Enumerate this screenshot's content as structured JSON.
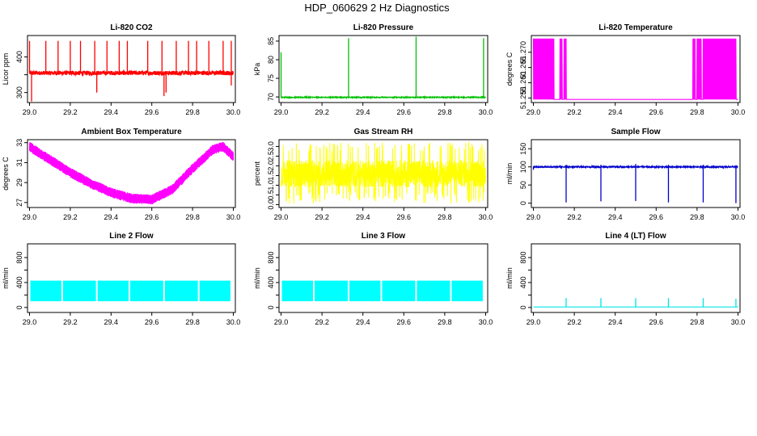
{
  "figure": {
    "title": "HDP_060629  2 Hz Diagnostics"
  },
  "chart_data": [
    {
      "id": "co2",
      "type": "line",
      "title": "Li-820 CO2",
      "ylabel": "Licor ppm",
      "color": "#ff0000",
      "x_ticks": [
        "29.0",
        "29.2",
        "29.4",
        "29.6",
        "29.8",
        "30.0"
      ],
      "xlim": [
        28.99,
        30.01
      ],
      "y_ticks": [
        300,
        350,
        400
      ],
      "y_tick_labels": [
        "300",
        "",
        "400"
      ],
      "ylim": [
        272,
        460
      ],
      "series": [
        {
          "pattern": "baseline_spikes",
          "base": 355,
          "noise": 6,
          "spikes": [
            [
              29.0,
              445
            ],
            [
              29.08,
              445
            ],
            [
              29.14,
              445
            ],
            [
              29.2,
              445
            ],
            [
              29.25,
              445
            ],
            [
              29.32,
              445
            ],
            [
              29.38,
              445
            ],
            [
              29.44,
              445
            ],
            [
              29.48,
              445
            ],
            [
              29.58,
              445
            ],
            [
              29.65,
              445
            ],
            [
              29.72,
              445
            ],
            [
              29.78,
              445
            ],
            [
              29.82,
              445
            ],
            [
              29.88,
              445
            ],
            [
              29.95,
              445
            ],
            [
              29.99,
              445
            ]
          ],
          "dips": [
            [
              29.01,
              275
            ],
            [
              29.33,
              300
            ],
            [
              29.66,
              290
            ],
            [
              29.67,
              300
            ],
            [
              29.99,
              320
            ]
          ]
        }
      ]
    },
    {
      "id": "pressure",
      "type": "line",
      "title": "Li-820 Pressure",
      "ylabel": "kPa",
      "color": "#00c000",
      "x_ticks": [
        "29.0",
        "29.2",
        "29.4",
        "29.6",
        "29.8",
        "30.0"
      ],
      "xlim": [
        28.99,
        30.01
      ],
      "y_ticks": [
        70,
        75,
        80,
        85
      ],
      "y_tick_labels": [
        "70",
        "75",
        "80",
        "85"
      ],
      "ylim": [
        68.5,
        86.5
      ],
      "series": [
        {
          "pattern": "baseline_spikes",
          "base": 69.9,
          "noise": 0.1,
          "spikes": [
            [
              29.0,
              82
            ],
            [
              29.33,
              85.8
            ],
            [
              29.66,
              86.2
            ],
            [
              29.99,
              85.8
            ]
          ],
          "dips": []
        }
      ]
    },
    {
      "id": "temp820",
      "type": "line",
      "title": "Li-820 Temperature",
      "ylabel": "degrees C",
      "color": "#ff00ff",
      "x_ticks": [
        "29.0",
        "29.2",
        "29.4",
        "29.6",
        "29.8",
        "30.0"
      ],
      "xlim": [
        28.99,
        30.01
      ],
      "y_ticks": [
        51.255,
        51.26,
        51.265,
        51.27
      ],
      "y_tick_labels": [
        "51.255",
        "51.260",
        "51.265",
        "51.270"
      ],
      "ylim": [
        51.2535,
        51.2755
      ],
      "series": [
        {
          "pattern": "two_level",
          "low": 51.2545,
          "high": 51.2745,
          "toggle_ranges": [
            [
              29.0,
              29.1
            ],
            [
              29.13,
              29.14
            ],
            [
              29.15,
              29.16
            ],
            [
              29.78,
              29.79
            ],
            [
              29.8,
              29.82
            ],
            [
              29.83,
              29.99
            ]
          ]
        }
      ]
    },
    {
      "id": "ambient",
      "type": "line",
      "title": "Ambient Box Temperature",
      "ylabel": "degrees C",
      "color": "#ff00ff",
      "x_ticks": [
        "29.0",
        "29.2",
        "29.4",
        "29.6",
        "29.8",
        "30.0"
      ],
      "xlim": [
        28.99,
        30.01
      ],
      "y_ticks": [
        27,
        29,
        31,
        33
      ],
      "y_tick_labels": [
        "27",
        "29",
        "31",
        "33"
      ],
      "ylim": [
        26.5,
        33.3
      ],
      "series": [
        {
          "pattern": "band",
          "band": 0.5,
          "curve": [
            [
              29.0,
              32.6
            ],
            [
              29.1,
              31.3
            ],
            [
              29.2,
              30.0
            ],
            [
              29.3,
              28.9
            ],
            [
              29.4,
              28.0
            ],
            [
              29.5,
              27.4
            ],
            [
              29.6,
              27.3
            ],
            [
              29.7,
              28.3
            ],
            [
              29.8,
              30.4
            ],
            [
              29.9,
              32.3
            ],
            [
              29.95,
              32.6
            ],
            [
              30.0,
              31.6
            ]
          ]
        }
      ]
    },
    {
      "id": "rh",
      "type": "line",
      "title": "Gas Stream RH",
      "ylabel": "percent",
      "color": "#ffff00",
      "x_ticks": [
        "29.0",
        "29.2",
        "29.4",
        "29.6",
        "29.8",
        "30.0"
      ],
      "xlim": [
        28.99,
        30.01
      ],
      "y_ticks": [
        0,
        0.5,
        1,
        1.5,
        2,
        2.5,
        3
      ],
      "y_tick_labels": [
        "0.0",
        "0.5",
        "1.0",
        "1.5",
        "2.0",
        "2.5",
        "3.0"
      ],
      "ylim": [
        -0.15,
        3.35
      ],
      "series": [
        {
          "pattern": "noise_band",
          "low": 0.9,
          "high": 2.3,
          "min": 0.05,
          "max": 3.25
        }
      ]
    },
    {
      "id": "sample",
      "type": "line",
      "title": "Sample Flow",
      "ylabel": "ml/min",
      "color": "#0000cc",
      "x_ticks": [
        "29.0",
        "29.2",
        "29.4",
        "29.6",
        "29.8",
        "30.0"
      ],
      "xlim": [
        28.99,
        30.01
      ],
      "y_ticks": [
        0,
        50,
        100,
        150
      ],
      "y_tick_labels": [
        "0",
        "50",
        "100",
        "150"
      ],
      "ylim": [
        -12,
        175
      ],
      "series": [
        {
          "pattern": "baseline_spikes",
          "base": 100,
          "noise": 1.5,
          "spikes": [
            [
              29.16,
              106
            ],
            [
              29.33,
              106
            ],
            [
              29.5,
              108
            ],
            [
              29.66,
              106
            ],
            [
              29.83,
              106
            ],
            [
              29.99,
              104
            ]
          ],
          "dips": [
            [
              29.0,
              92
            ],
            [
              29.16,
              2
            ],
            [
              29.33,
              5
            ],
            [
              29.5,
              6
            ],
            [
              29.66,
              2
            ],
            [
              29.83,
              2
            ],
            [
              29.99,
              0
            ]
          ]
        }
      ]
    },
    {
      "id": "line2",
      "type": "area",
      "title": "Line 2 Flow",
      "ylabel": "ml/min",
      "color": "#00ffff",
      "x_ticks": [
        "29.0",
        "29.2",
        "29.4",
        "29.6",
        "29.8",
        "30.0"
      ],
      "xlim": [
        28.99,
        30.01
      ],
      "y_ticks": [
        0,
        200,
        400,
        600,
        800
      ],
      "y_tick_labels": [
        "0",
        "",
        "400",
        "",
        "800"
      ],
      "ylim": [
        -80,
        1020
      ],
      "series": [
        {
          "pattern": "blocks",
          "low": 100,
          "high": 430,
          "gaps": [
            29.16,
            29.33,
            29.49,
            29.66,
            29.83
          ],
          "end": 29.99
        }
      ]
    },
    {
      "id": "line3",
      "type": "area",
      "title": "Line 3 Flow",
      "ylabel": "ml/min",
      "color": "#00ffff",
      "x_ticks": [
        "29.0",
        "29.2",
        "29.4",
        "29.6",
        "29.8",
        "30.0"
      ],
      "xlim": [
        28.99,
        30.01
      ],
      "y_ticks": [
        0,
        200,
        400,
        600,
        800
      ],
      "y_tick_labels": [
        "0",
        "",
        "400",
        "",
        "800"
      ],
      "ylim": [
        -80,
        1020
      ],
      "series": [
        {
          "pattern": "blocks",
          "low": 100,
          "high": 430,
          "gaps": [
            29.16,
            29.33,
            29.49,
            29.66,
            29.83
          ],
          "end": 29.99
        }
      ]
    },
    {
      "id": "line4",
      "type": "line",
      "title": "Line 4 (LT) Flow",
      "ylabel": "ml/min",
      "color": "#00e5e5",
      "x_ticks": [
        "29.0",
        "29.2",
        "29.4",
        "29.6",
        "29.8",
        "30.0"
      ],
      "xlim": [
        28.99,
        30.01
      ],
      "y_ticks": [
        0,
        200,
        400,
        600,
        800
      ],
      "y_tick_labels": [
        "0",
        "",
        "400",
        "",
        "800"
      ],
      "ylim": [
        -80,
        1020
      ],
      "series": [
        {
          "pattern": "baseline_spikes",
          "base": 8,
          "noise": 0,
          "spikes": [
            [
              29.16,
              150
            ],
            [
              29.33,
              150
            ],
            [
              29.5,
              150
            ],
            [
              29.66,
              150
            ],
            [
              29.83,
              150
            ],
            [
              29.99,
              140
            ]
          ],
          "dips": []
        }
      ]
    }
  ]
}
